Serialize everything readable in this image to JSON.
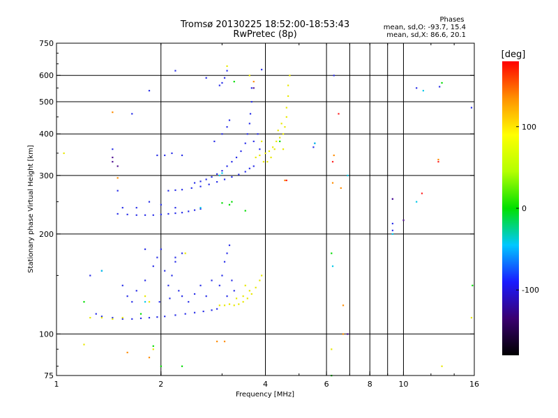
{
  "chart_data": {
    "type": "scatter",
    "title_line1": "Tromsø 20130225 18:52:00-18:53:43",
    "title_line2": "RwPretec (8p)",
    "xlabel": "Frequency [MHz]",
    "ylabel": "Stationary phase Virtual Height [km]",
    "x_scale": "log",
    "y_scale": "log",
    "xlim": [
      1,
      16
    ],
    "ylim": [
      75,
      750
    ],
    "x_ticks": [
      1,
      2,
      4,
      6,
      8,
      10,
      16
    ],
    "x_tick_labels": [
      "1",
      "2",
      "4",
      "6",
      "8",
      "10",
      "16"
    ],
    "x_gridlines": [
      2,
      4,
      6,
      7,
      8,
      9,
      10,
      16
    ],
    "y_ticks": [
      75,
      100,
      200,
      300,
      400,
      500,
      600,
      750
    ],
    "y_tick_labels": [
      "75",
      "100",
      "200",
      "300",
      "400",
      "500",
      "600",
      "750"
    ],
    "y_gridlines": [
      100,
      200,
      300,
      400,
      500,
      600
    ],
    "grid": true,
    "legend_placement": "top-right",
    "stats": {
      "heading": "Phases",
      "line_o": "mean, sd,O: -93.7, 15.4",
      "line_x": "mean, sd,X:  86.6, 20.1"
    },
    "colorbar": {
      "title": "[deg]",
      "range": [
        -180,
        180
      ],
      "tick_values": [
        100,
        0,
        -100
      ],
      "tick_labels": [
        "100",
        "0",
        "-100"
      ],
      "colors": [
        "#000000",
        "#3a0070",
        "#1a1aff",
        "#00c8ff",
        "#00e000",
        "#b4ff00",
        "#ffff00",
        "#ff9000",
        "#ff0000"
      ]
    },
    "series": [
      {
        "name": "",
        "color": "#2a30e8",
        "points": [
          [
            1.35,
            113
          ],
          [
            1.45,
            112
          ],
          [
            1.55,
            111
          ],
          [
            1.65,
            111
          ],
          [
            1.75,
            111.5
          ],
          [
            1.85,
            112
          ],
          [
            1.95,
            112.5
          ],
          [
            2.05,
            113
          ],
          [
            2.2,
            114
          ],
          [
            2.35,
            115
          ],
          [
            2.5,
            116
          ],
          [
            2.65,
            117
          ],
          [
            2.8,
            118
          ],
          [
            2.9,
            119
          ],
          [
            1.7,
            135
          ],
          [
            1.8,
            145
          ],
          [
            1.9,
            160
          ],
          [
            1.95,
            170
          ],
          [
            2.0,
            180
          ],
          [
            2.05,
            155
          ],
          [
            2.1,
            140
          ],
          [
            2.15,
            150
          ],
          [
            2.2,
            165
          ],
          [
            2.25,
            135
          ],
          [
            2.3,
            130
          ],
          [
            2.4,
            125
          ],
          [
            2.5,
            132
          ],
          [
            2.6,
            140
          ],
          [
            2.7,
            130
          ],
          [
            2.8,
            145
          ],
          [
            1.65,
            125
          ],
          [
            1.55,
            140
          ],
          [
            1.6,
            130
          ],
          [
            2.3,
            175
          ],
          [
            2.2,
            170
          ],
          [
            1.8,
            180
          ],
          [
            1.98,
            125
          ],
          [
            2.12,
            128
          ],
          [
            3.0,
            150
          ],
          [
            3.05,
            165
          ],
          [
            3.1,
            175
          ],
          [
            3.15,
            185
          ],
          [
            3.2,
            145
          ],
          [
            3.25,
            135
          ],
          [
            3.1,
            130
          ],
          [
            2.95,
            140
          ],
          [
            1.5,
            230
          ],
          [
            1.6,
            229
          ],
          [
            1.7,
            228
          ],
          [
            1.8,
            228
          ],
          [
            1.9,
            228
          ],
          [
            2.0,
            229
          ],
          [
            2.1,
            230
          ],
          [
            2.2,
            231
          ],
          [
            2.3,
            232
          ],
          [
            2.4,
            234
          ],
          [
            2.5,
            236
          ],
          [
            2.6,
            238
          ],
          [
            2.1,
            270
          ],
          [
            2.2,
            271
          ],
          [
            2.3,
            272
          ],
          [
            2.45,
            275
          ],
          [
            2.6,
            278
          ],
          [
            2.75,
            282
          ],
          [
            2.9,
            287
          ],
          [
            3.05,
            292
          ],
          [
            3.2,
            297
          ],
          [
            3.35,
            302
          ],
          [
            3.5,
            308
          ],
          [
            3.6,
            315
          ],
          [
            3.7,
            320
          ],
          [
            2.5,
            285
          ],
          [
            2.6,
            288
          ],
          [
            2.7,
            292
          ],
          [
            2.8,
            297
          ],
          [
            2.9,
            303
          ],
          [
            3.0,
            310
          ],
          [
            3.1,
            320
          ],
          [
            3.2,
            330
          ],
          [
            3.3,
            340
          ],
          [
            3.4,
            355
          ],
          [
            3.5,
            375
          ],
          [
            3.55,
            400
          ],
          [
            3.6,
            430
          ],
          [
            3.62,
            460
          ],
          [
            3.65,
            500
          ],
          [
            3.65,
            550
          ],
          [
            1.95,
            345
          ],
          [
            2.05,
            345
          ],
          [
            2.15,
            350
          ],
          [
            2.3,
            345
          ],
          [
            2.85,
            380
          ],
          [
            3.0,
            400
          ],
          [
            3.1,
            420
          ],
          [
            3.15,
            440
          ],
          [
            3.7,
            380
          ],
          [
            3.8,
            400
          ],
          [
            3.85,
            360
          ],
          [
            1.7,
            240
          ],
          [
            1.85,
            250
          ],
          [
            2.0,
            245
          ],
          [
            2.2,
            240
          ],
          [
            1.55,
            240
          ],
          [
            2.95,
            560
          ],
          [
            3.05,
            590
          ],
          [
            3.1,
            620
          ],
          [
            3.0,
            570
          ],
          [
            2.7,
            590
          ],
          [
            2.2,
            620
          ],
          [
            3.9,
            625
          ],
          [
            5.5,
            365
          ],
          [
            5.55,
            375
          ],
          [
            6.3,
            600
          ],
          [
            1.35,
            155
          ],
          [
            1.25,
            150
          ],
          [
            1.45,
            360
          ],
          [
            1.5,
            270
          ],
          [
            1.65,
            460
          ],
          [
            1.85,
            540
          ],
          [
            9.3,
            255
          ],
          [
            9.3,
            215
          ],
          [
            9.3,
            205
          ],
          [
            10.9,
            550
          ],
          [
            12.7,
            555
          ],
          [
            15.7,
            480
          ],
          [
            1.3,
            115
          ]
        ]
      },
      {
        "name": "",
        "color": "#e8e800",
        "points": [
          [
            1.25,
            112
          ],
          [
            1.35,
            112
          ],
          [
            1.45,
            111
          ],
          [
            1.55,
            112
          ],
          [
            1.8,
            130
          ],
          [
            1.85,
            125
          ],
          [
            2.35,
            175
          ],
          [
            2.95,
            122
          ],
          [
            3.05,
            122
          ],
          [
            3.15,
            123
          ],
          [
            3.25,
            122
          ],
          [
            3.35,
            123
          ],
          [
            3.45,
            125
          ],
          [
            3.55,
            128
          ],
          [
            3.65,
            132
          ],
          [
            3.75,
            138
          ],
          [
            3.85,
            145
          ],
          [
            3.9,
            150
          ],
          [
            3.6,
            135
          ],
          [
            3.5,
            140
          ],
          [
            3.45,
            130
          ],
          [
            3.3,
            128
          ],
          [
            3.75,
            340
          ],
          [
            3.85,
            345
          ],
          [
            4.0,
            350
          ],
          [
            4.1,
            355
          ],
          [
            4.2,
            365
          ],
          [
            4.3,
            380
          ],
          [
            4.4,
            390
          ],
          [
            4.5,
            400
          ],
          [
            4.55,
            420
          ],
          [
            4.6,
            450
          ],
          [
            4.6,
            480
          ],
          [
            4.65,
            520
          ],
          [
            4.65,
            560
          ],
          [
            4.7,
            600
          ],
          [
            4.35,
            410
          ],
          [
            4.45,
            430
          ],
          [
            4.25,
            360
          ],
          [
            4.5,
            360
          ],
          [
            3.1,
            640
          ],
          [
            3.6,
            600
          ],
          [
            3.9,
            380
          ],
          [
            3.95,
            330
          ],
          [
            4.05,
            330
          ],
          [
            4.15,
            340
          ],
          [
            6.2,
            90
          ],
          [
            12.9,
            80
          ],
          [
            15.7,
            112
          ],
          [
            1.9,
            90
          ],
          [
            1.2,
            93
          ],
          [
            1.05,
            350
          ]
        ]
      },
      {
        "name": "",
        "color": "#00dd00",
        "points": [
          [
            1.75,
            115
          ],
          [
            3.15,
            245
          ],
          [
            3.2,
            250
          ],
          [
            3.0,
            248
          ],
          [
            3.5,
            235
          ],
          [
            3.25,
            575
          ],
          [
            4.4,
            380
          ],
          [
            6.2,
            175
          ],
          [
            6.2,
            75
          ],
          [
            12.9,
            570
          ],
          [
            15.8,
            140
          ],
          [
            2.0,
            80
          ],
          [
            2.3,
            80
          ],
          [
            1.9,
            92
          ],
          [
            1.2,
            125
          ]
        ]
      },
      {
        "name": "",
        "color": "#ff8c00",
        "points": [
          [
            1.45,
            465
          ],
          [
            1.5,
            295
          ],
          [
            2.9,
            95
          ],
          [
            3.05,
            95
          ],
          [
            4.55,
            290
          ],
          [
            6.25,
            285
          ],
          [
            6.3,
            345
          ],
          [
            6.6,
            275
          ],
          [
            6.7,
            122
          ],
          [
            6.7,
            100
          ],
          [
            12.6,
            335
          ],
          [
            1.85,
            85
          ],
          [
            1.6,
            88
          ],
          [
            3.7,
            575
          ]
        ]
      },
      {
        "name": "",
        "color": "#ff2020",
        "points": [
          [
            4.6,
            290
          ],
          [
            6.5,
            460
          ],
          [
            11.3,
            265
          ],
          [
            12.6,
            330
          ],
          [
            6.25,
            330
          ]
        ]
      },
      {
        "name": "",
        "color": "#00c8e8",
        "points": [
          [
            1.35,
            155
          ],
          [
            2.95,
            300
          ],
          [
            3.0,
            305
          ],
          [
            5.55,
            375
          ],
          [
            6.25,
            160
          ],
          [
            6.9,
            300
          ],
          [
            9.3,
            200
          ],
          [
            10.9,
            250
          ],
          [
            11.4,
            540
          ],
          [
            2.6,
            240
          ],
          [
            1.8,
            125
          ]
        ]
      },
      {
        "name": "",
        "color": "#501090",
        "points": [
          [
            1.45,
            340
          ],
          [
            1.45,
            330
          ],
          [
            1.5,
            320
          ],
          [
            6.9,
            100
          ],
          [
            9.3,
            255
          ],
          [
            10.0,
            220
          ],
          [
            3.7,
            550
          ]
        ]
      }
    ]
  }
}
